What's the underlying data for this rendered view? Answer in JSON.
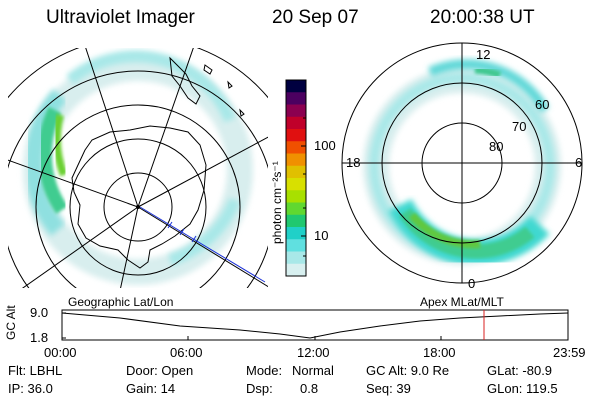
{
  "header": {
    "instrument": "Ultraviolet Imager",
    "date": "20 Sep 07",
    "time": "20:00:38 UT"
  },
  "colorbar": {
    "unit_label": "photon cm⁻²s⁻¹",
    "tick_100": "100",
    "tick_10": "10",
    "scale": "log",
    "colors": [
      "#000040",
      "#4b0060",
      "#8b0050",
      "#c0002a",
      "#e01010",
      "#f05000",
      "#f09000",
      "#e0c000",
      "#d8e000",
      "#a8e000",
      "#60d830",
      "#20c870",
      "#20d0c8",
      "#60e0e0",
      "#a8e8e8",
      "#d8f0f0"
    ]
  },
  "left_map": {
    "label": "Geographic Lat/Lon",
    "projection": "geographic"
  },
  "right_map": {
    "label": "Apex  MLat/MLT",
    "mlt_labels": {
      "top": "12",
      "left": "18",
      "right": "6",
      "bottom": "0"
    },
    "mlat_labels": [
      "60",
      "70",
      "80"
    ]
  },
  "timeline": {
    "y_axis_label": "GC Alt",
    "y_ticks": [
      "9.0",
      "1.8"
    ],
    "x_ticks": [
      "00:00",
      "06:00",
      "12:00",
      "18:00",
      "23:59"
    ],
    "marker_time": "20:00:38"
  },
  "status": {
    "flt": "Flt: LBHL",
    "ip": "IP: 36.0",
    "door": "Door: Open",
    "gain": "Gain: 14",
    "mode_label": "Mode:",
    "mode_value": "Normal",
    "dsp_label": "Dsp:",
    "dsp_value": "0.8",
    "gc_alt": "GC Alt: 9.0 Re",
    "seq": "Seq: 39",
    "glat": "GLat: -80.9",
    "glon": "GLon: 119.5"
  }
}
